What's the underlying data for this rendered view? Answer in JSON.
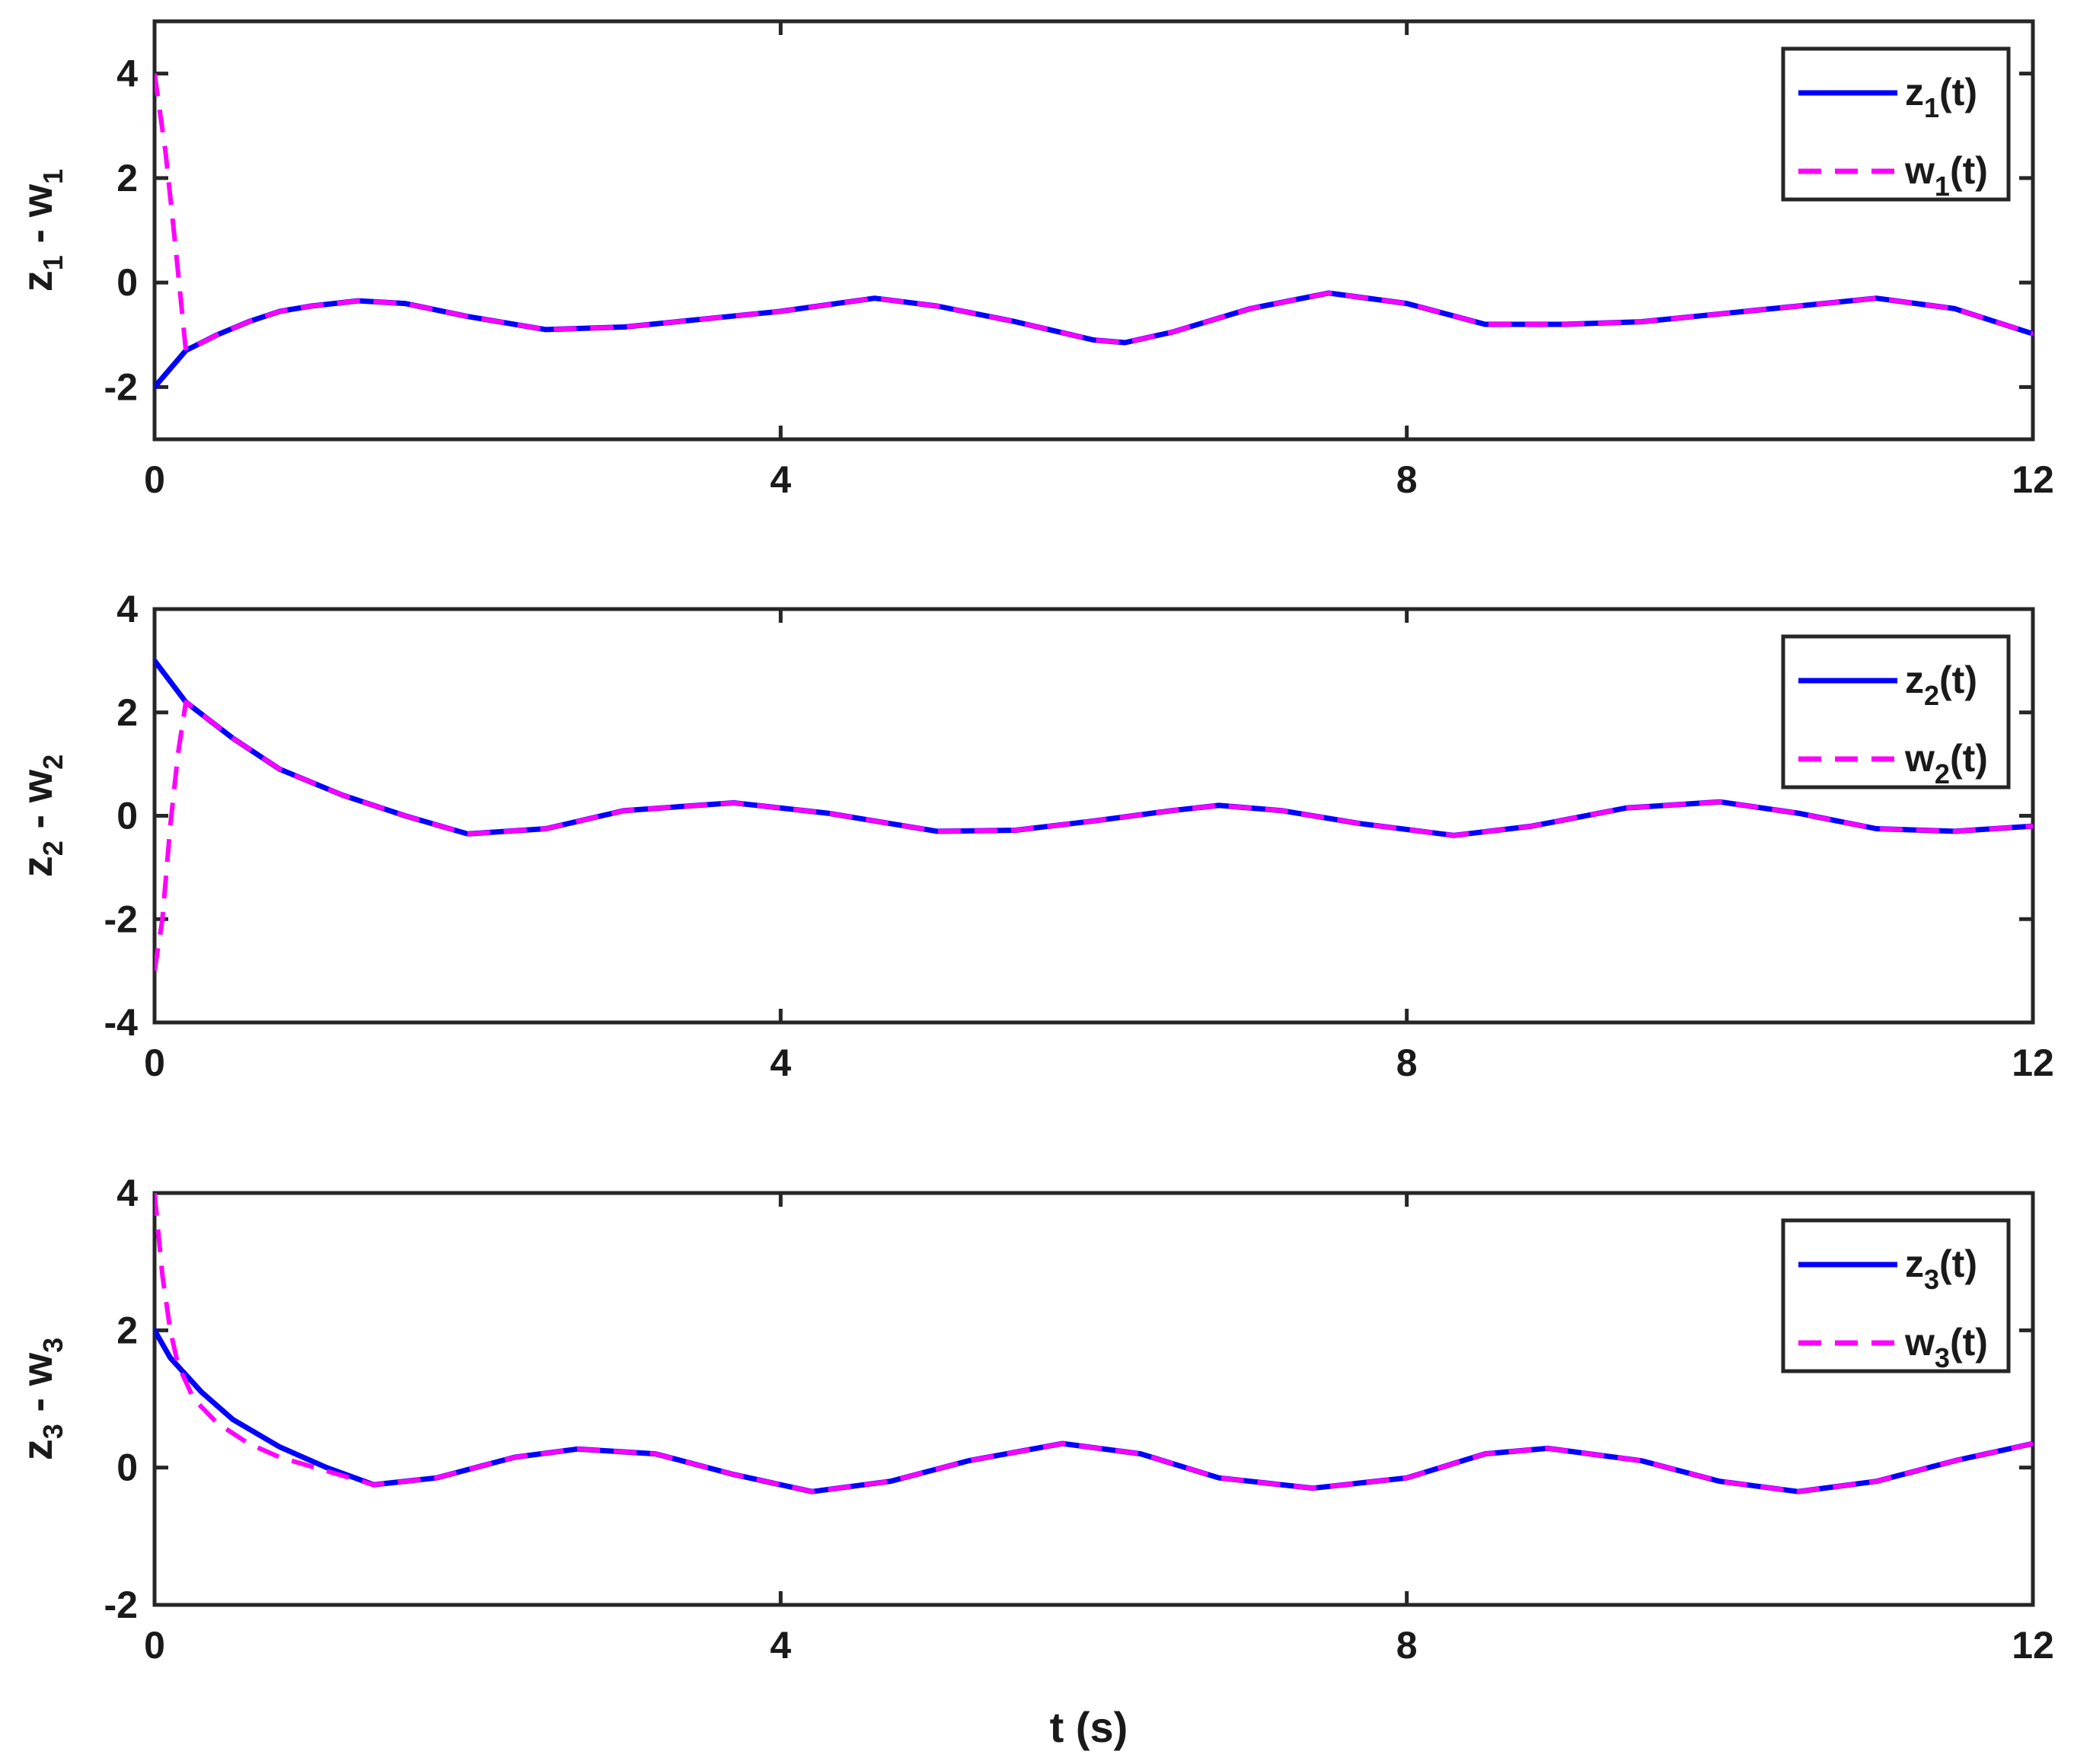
{
  "figure": {
    "xlabel": "t (s)"
  },
  "chart_data": [
    {
      "type": "line",
      "ylabel": {
        "base": "z",
        "sub1": "1",
        "mid": " - w",
        "sub2": "1"
      },
      "xlim": [
        0,
        12
      ],
      "ylim": [
        -3,
        5
      ],
      "xticks": [
        0,
        4,
        8,
        12
      ],
      "yticks": [
        -2,
        0,
        2,
        4
      ],
      "grid": false,
      "legend_position": "top-right",
      "series": [
        {
          "name": "z1(t)",
          "legend": {
            "base": "z",
            "sub": "1",
            "suffix": "(t)"
          },
          "color": "#0000ff",
          "style": "solid",
          "x": [
            0,
            0.2,
            0.4,
            0.6,
            0.8,
            1.0,
            1.3,
            1.6,
            2.0,
            2.5,
            3.0,
            3.5,
            4.0,
            4.6,
            5.0,
            5.5,
            6.0,
            6.2,
            6.5,
            7.0,
            7.5,
            8.0,
            8.5,
            9.0,
            9.5,
            10.0,
            10.5,
            11.0,
            11.5,
            12.0
          ],
          "y": [
            -2.0,
            -1.3,
            -1.0,
            -0.75,
            -0.55,
            -0.45,
            -0.35,
            -0.4,
            -0.65,
            -0.9,
            -0.85,
            -0.7,
            -0.55,
            -0.3,
            -0.45,
            -0.75,
            -1.1,
            -1.15,
            -0.95,
            -0.5,
            -0.2,
            -0.4,
            -0.8,
            -0.8,
            -0.75,
            -0.6,
            -0.45,
            -0.3,
            -0.5,
            -0.98
          ]
        },
        {
          "name": "w1(t)",
          "legend": {
            "base": "w",
            "sub": "1",
            "suffix": "(t)"
          },
          "color": "#ff00ff",
          "style": "dashed",
          "x": [
            0,
            0.07,
            0.14,
            0.2,
            0.4,
            0.6,
            0.8,
            1.0,
            1.3,
            1.6,
            2.0,
            2.5,
            3.0,
            3.5,
            4.0,
            4.6,
            5.0,
            5.5,
            6.0,
            6.2,
            6.5,
            7.0,
            7.5,
            8.0,
            8.5,
            9.0,
            9.5,
            10.0,
            10.5,
            11.0,
            11.5,
            12.0
          ],
          "y": [
            4.0,
            2.5,
            0.5,
            -1.3,
            -1.0,
            -0.75,
            -0.55,
            -0.45,
            -0.35,
            -0.4,
            -0.65,
            -0.9,
            -0.85,
            -0.7,
            -0.55,
            -0.3,
            -0.45,
            -0.75,
            -1.1,
            -1.15,
            -0.95,
            -0.5,
            -0.2,
            -0.4,
            -0.8,
            -0.8,
            -0.75,
            -0.6,
            -0.45,
            -0.3,
            -0.5,
            -0.98
          ]
        }
      ]
    },
    {
      "type": "line",
      "ylabel": {
        "base": "z",
        "sub1": "2",
        "mid": " - w",
        "sub2": "2"
      },
      "xlim": [
        0,
        12
      ],
      "ylim": [
        -4,
        4
      ],
      "xticks": [
        0,
        4,
        8,
        12
      ],
      "yticks": [
        -4,
        -2,
        0,
        2,
        4
      ],
      "grid": false,
      "legend_position": "top-right",
      "series": [
        {
          "name": "z2(t)",
          "legend": {
            "base": "z",
            "sub": "2",
            "suffix": "(t)"
          },
          "color": "#0000ff",
          "style": "solid",
          "x": [
            0,
            0.2,
            0.5,
            0.8,
            1.2,
            1.6,
            2.0,
            2.5,
            3.0,
            3.7,
            4.3,
            5.0,
            5.5,
            6.0,
            6.5,
            6.8,
            7.2,
            7.7,
            8.3,
            8.8,
            9.4,
            10.0,
            10.5,
            11.0,
            11.5,
            12.0
          ],
          "y": [
            3.0,
            2.2,
            1.5,
            0.9,
            0.4,
            0.0,
            -0.35,
            -0.25,
            0.1,
            0.25,
            0.05,
            -0.3,
            -0.28,
            -0.1,
            0.1,
            0.2,
            0.1,
            -0.15,
            -0.38,
            -0.2,
            0.15,
            0.27,
            0.05,
            -0.25,
            -0.3,
            -0.2
          ]
        },
        {
          "name": "w2(t)",
          "legend": {
            "base": "w",
            "sub": "2",
            "suffix": "(t)"
          },
          "color": "#ff00ff",
          "style": "dashed",
          "x": [
            0,
            0.05,
            0.1,
            0.15,
            0.2,
            0.5,
            0.8,
            1.2,
            1.6,
            2.0,
            2.5,
            3.0,
            3.7,
            4.3,
            5.0,
            5.5,
            6.0,
            6.5,
            6.8,
            7.2,
            7.7,
            8.3,
            8.8,
            9.4,
            10.0,
            10.5,
            11.0,
            11.5,
            12.0
          ],
          "y": [
            -3.0,
            -2.0,
            -0.2,
            1.2,
            2.2,
            1.5,
            0.9,
            0.4,
            0.0,
            -0.35,
            -0.25,
            0.1,
            0.25,
            0.05,
            -0.3,
            -0.28,
            -0.1,
            0.1,
            0.2,
            0.1,
            -0.15,
            -0.38,
            -0.2,
            0.15,
            0.27,
            0.05,
            -0.25,
            -0.3,
            -0.2
          ]
        }
      ]
    },
    {
      "type": "line",
      "ylabel": {
        "base": "z",
        "sub1": "3",
        "mid": " - w",
        "sub2": "3"
      },
      "xlim": [
        0,
        12
      ],
      "ylim": [
        -2,
        4
      ],
      "xticks": [
        0,
        4,
        8,
        12
      ],
      "yticks": [
        -2,
        0,
        2,
        4
      ],
      "grid": false,
      "legend_position": "top-right",
      "series": [
        {
          "name": "z3(t)",
          "legend": {
            "base": "z",
            "sub": "3",
            "suffix": "(t)"
          },
          "color": "#0000ff",
          "style": "solid",
          "x": [
            0,
            0.1,
            0.3,
            0.5,
            0.8,
            1.1,
            1.4,
            1.8,
            2.3,
            2.7,
            3.2,
            3.7,
            4.2,
            4.7,
            5.2,
            5.8,
            6.3,
            6.8,
            7.4,
            8.0,
            8.5,
            8.9,
            9.5,
            10.0,
            10.5,
            11.0,
            11.5,
            12.0
          ],
          "y": [
            2.0,
            1.6,
            1.1,
            0.7,
            0.3,
            0.0,
            -0.25,
            -0.15,
            0.15,
            0.27,
            0.2,
            -0.1,
            -0.35,
            -0.2,
            0.1,
            0.35,
            0.2,
            -0.15,
            -0.3,
            -0.15,
            0.2,
            0.28,
            0.1,
            -0.2,
            -0.35,
            -0.2,
            0.1,
            0.35
          ]
        },
        {
          "name": "w3(t)",
          "legend": {
            "base": "w",
            "sub": "3",
            "suffix": "(t)"
          },
          "color": "#ff00ff",
          "style": "dashed",
          "x": [
            0,
            0.05,
            0.1,
            0.15,
            0.25,
            0.4,
            0.6,
            0.8,
            1.1,
            1.4,
            1.8,
            2.3,
            2.7,
            3.2,
            3.7,
            4.2,
            4.7,
            5.2,
            5.8,
            6.3,
            6.8,
            7.4,
            8.0,
            8.5,
            8.9,
            9.5,
            10.0,
            10.5,
            11.0,
            11.5,
            12.0
          ],
          "y": [
            4.0,
            2.8,
            2.0,
            1.5,
            1.0,
            0.65,
            0.35,
            0.15,
            -0.05,
            -0.25,
            -0.15,
            0.15,
            0.27,
            0.2,
            -0.1,
            -0.35,
            -0.2,
            0.1,
            0.35,
            0.2,
            -0.15,
            -0.3,
            -0.15,
            0.2,
            0.28,
            0.1,
            -0.2,
            -0.35,
            -0.2,
            0.1,
            0.35
          ]
        }
      ]
    }
  ]
}
